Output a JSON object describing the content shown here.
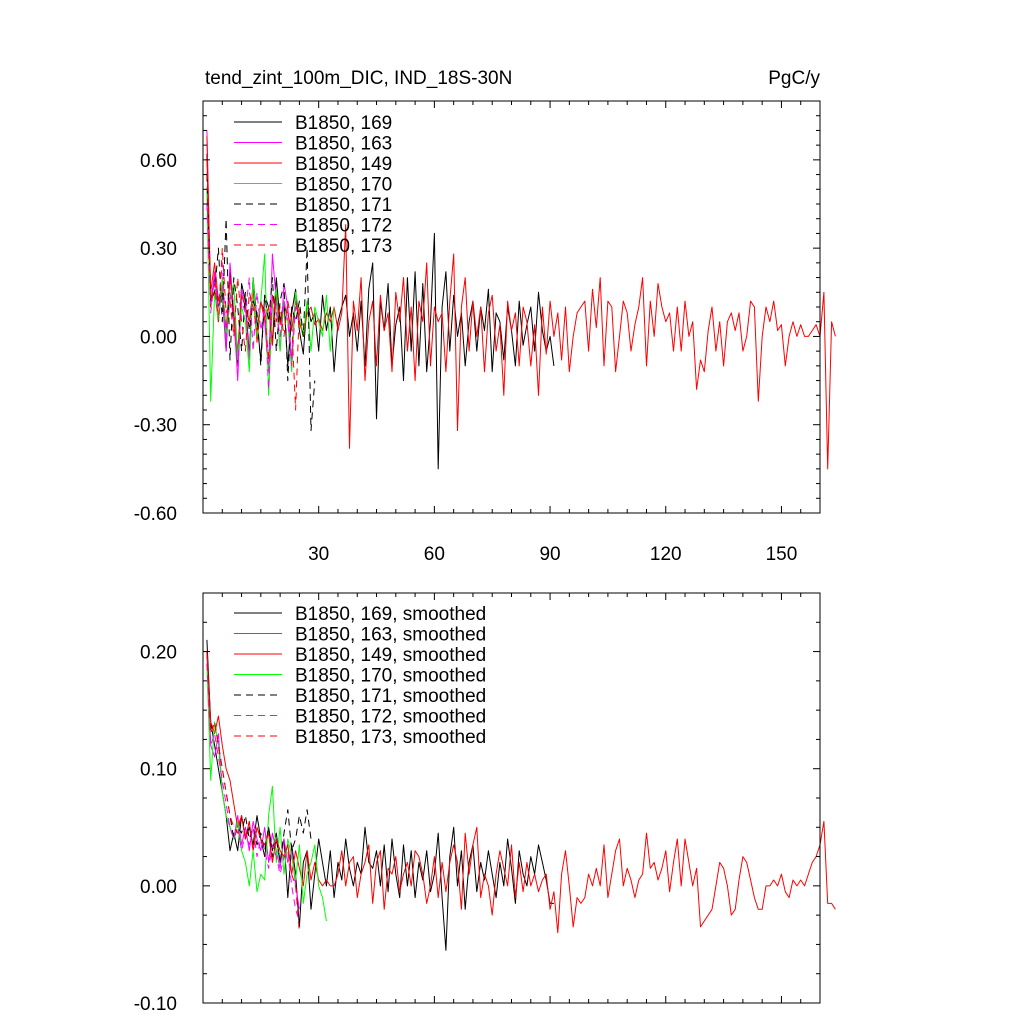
{
  "chart_data": [
    {
      "type": "line",
      "title_left": "tend_zint_100m_DIC, IND_18S-30N",
      "title_right": "PgC/y",
      "xlim": [
        0,
        160
      ],
      "ylim": [
        -0.6,
        0.8
      ],
      "x_ticks": [
        30,
        60,
        90,
        120,
        150
      ],
      "x_tick_labels": [
        "30",
        "60",
        "90",
        "120",
        "150"
      ],
      "y_ticks": [
        -0.6,
        -0.3,
        0.0,
        0.3,
        0.6
      ],
      "y_tick_labels": [
        "-0.60",
        "-0.30",
        "0.00",
        "0.30",
        "0.60"
      ],
      "legend_position": "top-left",
      "series": [
        {
          "name": "B1850, 169",
          "color": "#000000",
          "dash": "solid",
          "values": [
            0.62,
            0.12,
            0.2,
            0.1,
            0.15,
            -0.05,
            0.22,
            0.05,
            -0.1,
            0.18,
            0.12,
            -0.06,
            0.2,
            0.05,
            -0.08,
            0.14,
            0.1,
            -0.02,
            0.2,
            0.05,
            0.12,
            -0.1,
            0.08,
            0.16,
            0.02,
            -0.06,
            0.12,
            0.05,
            0.08,
            -0.05,
            0.14,
            0.02,
            0.1,
            -0.12,
            0.05,
            0.1,
            0.14,
            0.0,
            0.08,
            -0.05,
            0.12,
            -0.1,
            0.16,
            0.25,
            -0.28,
            0.12,
            0.02,
            0.18,
            -0.1,
            0.04,
            0.1,
            -0.15,
            0.2,
            -0.05,
            0.22,
            -0.1,
            0.18,
            -0.12,
            0.05,
            0.35,
            -0.45,
            0.1,
            0.22,
            -0.05,
            0.14,
            0.0,
            0.08,
            -0.1,
            0.05,
            0.12,
            -0.05,
            0.1,
            0.02,
            0.16,
            -0.12,
            0.08,
            0.05,
            -0.08,
            0.1,
            0.02,
            -0.1,
            0.12,
            -0.03,
            0.04,
            0.1,
            -0.05,
            0.15,
            0.02,
            -0.05,
            0.0,
            -0.1
          ]
        },
        {
          "name": "B1850, 163",
          "color": "#ff00ff",
          "dash": "solid",
          "values": [
            0.7,
            0.1,
            0.22,
            0.05,
            0.18,
            -0.05,
            0.25,
            0.08,
            -0.15,
            0.16,
            0.1,
            -0.08,
            0.2,
            0.0,
            0.12,
            0.05,
            -0.12,
            0.28,
            0.12,
            -0.05,
            0.18,
            0.1,
            -0.08,
            0.15,
            0.05
          ]
        },
        {
          "name": "B1850, 149",
          "color": "#ff0000",
          "dash": "solid",
          "values": [
            0.68,
            0.15,
            0.25,
            0.12,
            0.18,
            0.02,
            0.2,
            0.08,
            -0.05,
            0.14,
            0.1,
            0.05,
            0.16,
            -0.02,
            0.12,
            0.06,
            0.1,
            -0.03,
            0.14,
            0.04,
            0.1,
            0.08,
            0.02,
            0.12,
            0.05,
            0.0,
            0.08,
            0.1,
            0.04,
            0.06,
            0.02,
            0.08,
            0.05,
            0.1,
            0.02,
            0.08,
            0.38,
            -0.38,
            0.12,
            0.02,
            0.2,
            -0.15,
            0.05,
            0.12,
            -0.1,
            0.14,
            0.02,
            0.08,
            -0.12,
            0.15,
            0.05,
            0.2,
            -0.05,
            0.1,
            -0.15,
            0.12,
            0.05,
            0.25,
            -0.1,
            0.1,
            0.05,
            0.08,
            -0.12,
            0.12,
            0.28,
            -0.32,
            0.1,
            0.2,
            -0.05,
            0.12,
            0.0,
            0.1,
            -0.12,
            0.08,
            0.14,
            -0.05,
            0.04,
            -0.2,
            0.12,
            0.02,
            0.08,
            -0.1,
            0.1,
            0.05,
            -0.1,
            0.04,
            -0.2,
            0.1,
            -0.06,
            0.12,
            0.0,
            0.08,
            -0.08,
            0.1,
            -0.12,
            0.0,
            0.08,
            0.1,
            0.12,
            -0.05,
            0.16,
            0.03,
            0.2,
            -0.1,
            0.12,
            0.1,
            -0.12,
            0.0,
            0.12,
            0.08,
            -0.05,
            0.04,
            0.1,
            0.2,
            -0.1,
            0.12,
            0.0,
            0.18,
            0.1,
            0.05,
            0.08,
            -0.05,
            0.1,
            -0.05,
            0.12,
            0.0,
            0.05,
            -0.18,
            -0.08,
            -0.12,
            0.02,
            0.1,
            -0.05,
            0.05,
            -0.1,
            0.05,
            0.08,
            0.02,
            0.08,
            -0.05,
            0.0,
            0.12,
            0.1,
            -0.22,
            0.0,
            0.1,
            0.05,
            0.12,
            0.02,
            0.04,
            -0.1,
            0.0,
            0.05,
            0.0,
            0.04,
            0.0,
            0.0,
            0.02,
            0.04,
            0.0,
            0.15,
            -0.45,
            0.05,
            0.0
          ]
        },
        {
          "name": "B1850, 170",
          "color": "#00ff00",
          "dash": "solid",
          "values": [
            0.5,
            -0.22,
            0.15,
            0.05,
            0.2,
            0.0,
            0.12,
            0.18,
            -0.08,
            0.1,
            0.05,
            -0.12,
            0.2,
            0.0,
            0.12,
            0.28,
            -0.2,
            0.1,
            0.16,
            -0.05,
            0.12,
            0.05,
            -0.12,
            0.15,
            0.08,
            0.0,
            0.12,
            -0.05,
            0.1,
            0.05,
            0.0,
            0.14,
            -0.05,
            0.1
          ]
        },
        {
          "name": "B1850, 171",
          "color": "#000000",
          "dash": "dashed",
          "values": [
            0.55,
            0.12,
            0.15,
            0.3,
            0.05,
            0.4,
            -0.08,
            0.2,
            0.1,
            -0.05,
            0.15,
            0.02,
            0.12,
            0.08,
            -0.1,
            0.14,
            0.05,
            0.2,
            -0.05,
            0.12,
            0.18,
            -0.15,
            0.1,
            0.05,
            0.12,
            0.0,
            0.3,
            -0.32,
            -0.15
          ]
        },
        {
          "name": "B1850, 172",
          "color": "#ff00ff",
          "dash": "dashed",
          "values": [
            0.45,
            0.08,
            0.2,
            0.1,
            0.25,
            0.0,
            0.15,
            0.05,
            -0.1,
            0.12,
            0.08,
            0.2,
            -0.05,
            0.15,
            0.02,
            0.1,
            -0.18,
            0.14,
            0.08,
            0.0,
            0.12,
            0.05,
            -0.1,
            0.1,
            0.04
          ]
        },
        {
          "name": "B1850, 173",
          "color": "#ff0000",
          "dash": "dashed",
          "values": [
            0.6,
            0.1,
            0.18,
            0.05,
            0.3,
            0.08,
            0.12,
            0.0,
            0.2,
            0.05,
            -0.05,
            0.15,
            0.1,
            0.02,
            0.12,
            0.08,
            -0.08,
            0.14,
            0.05,
            0.1,
            0.0,
            0.12,
            0.05,
            -0.25,
            0.1
          ]
        }
      ]
    },
    {
      "type": "line",
      "xlim": [
        0,
        160
      ],
      "ylim": [
        -0.1,
        0.25
      ],
      "x_ticks": [
        30,
        60,
        90,
        120,
        150
      ],
      "y_ticks": [
        -0.1,
        0.0,
        0.1,
        0.2
      ],
      "y_tick_labels": [
        "-0.10",
        "0.00",
        "0.10",
        "0.20"
      ],
      "legend_position": "top-left",
      "series": [
        {
          "name": "B1850, 169, smoothed",
          "color": "#000000",
          "dash": "solid",
          "values": [
            0.21,
            0.14,
            0.12,
            0.1,
            0.08,
            0.06,
            0.03,
            0.045,
            0.03,
            0.06,
            0.04,
            0.05,
            0.035,
            0.06,
            0.04,
            0.025,
            0.05,
            0.03,
            0.045,
            0.02,
            0.04,
            -0.01,
            0.035,
            0.01,
            -0.035,
            0.02,
            0.03,
            -0.02,
            0.01,
            0.04,
            0.02,
            0.0,
            0.03,
            -0.01,
            0.02,
            0.005,
            0.04,
            0.015,
            0.0,
            0.02,
            0.01,
            0.05,
            0.02,
            0.015,
            0.03,
            0.0,
            0.035,
            -0.005,
            0.04,
            0.01,
            -0.01,
            0.035,
            0.0,
            0.03,
            -0.01,
            0.02,
            0.005,
            0.03,
            -0.005,
            0.01,
            0.045,
            -0.01,
            -0.055,
            0.025,
            0.05,
            0.0,
            0.03,
            -0.02,
            0.02,
            0.035,
            -0.005,
            0.02,
            0.005,
            0.03,
            0.01,
            -0.01,
            0.02,
            0.0,
            0.04,
            0.015,
            -0.015,
            0.03,
            0.01,
            0.0,
            0.025,
            0.01,
            0.035,
            0.02,
            0.005,
            -0.015,
            -0.015
          ]
        },
        {
          "name": "B1850, 163, smoothed",
          "color": "#ff00ff",
          "dash": "solid",
          "values": [
            0.2,
            0.12,
            0.11,
            0.13,
            0.08,
            0.06,
            0.05,
            0.04,
            0.06,
            0.035,
            0.05,
            0.03,
            0.055,
            0.04,
            0.03,
            0.05,
            0.02,
            0.045,
            0.03,
            0.015,
            0.04,
            0.02,
            0.03,
            0.0,
            -0.02
          ]
        },
        {
          "name": "B1850, 149, smoothed",
          "color": "#ff0000",
          "dash": "solid",
          "values": [
            0.2,
            0.14,
            0.13,
            0.145,
            0.12,
            0.1,
            0.09,
            0.07,
            0.05,
            0.06,
            0.04,
            0.055,
            0.03,
            0.05,
            0.04,
            0.035,
            0.045,
            0.02,
            0.04,
            0.03,
            0.025,
            0.035,
            0.01,
            0.03,
            0.015,
            0.0,
            0.03,
            0.005,
            0.02,
            0.005,
            0.0,
            0.005,
            0.0,
            0.0,
            0.01,
            0.03,
            0.0,
            0.02,
            0.025,
            -0.01,
            0.01,
            0.02,
            0.035,
            -0.015,
            0.02,
            0.03,
            -0.02,
            0.015,
            0.01,
            0.025,
            -0.005,
            0.01,
            0.02,
            0.0,
            0.03,
            0.025,
            0.01,
            -0.015,
            0.0,
            0.025,
            -0.01,
            0.02,
            -0.005,
            0.02,
            0.035,
            0.02,
            -0.02,
            0.045,
            0.01,
            0.035,
            0.05,
            -0.01,
            0.01,
            0.0,
            -0.025,
            0.01,
            0.03,
            0.015,
            0.0,
            0.035,
            -0.01,
            0.02,
            -0.005,
            0.02,
            0.0,
            0.01,
            -0.005,
            0.005,
            0.01,
            -0.02,
            -0.005,
            -0.04,
            0.01,
            0.03,
            0.0,
            -0.035,
            -0.01,
            -0.015,
            -0.01,
            0.01,
            0.0,
            0.015,
            0.0,
            0.035,
            -0.01,
            0.01,
            0.03,
            0.04,
            0.0,
            0.015,
            0.005,
            -0.01,
            0.005,
            0.01,
            0.045,
            0.015,
            0.02,
            0.005,
            0.015,
            0.03,
            -0.005,
            0.02,
            0.04,
            0.0,
            0.04,
            0.02,
            0.0,
            0.015,
            -0.035,
            -0.03,
            -0.025,
            -0.02,
            0.0,
            0.02,
            0.015,
            0.0,
            -0.025,
            -0.02,
            0.005,
            0.025,
            0.02,
            0.005,
            -0.01,
            -0.02,
            -0.02,
            0.0,
            0.0,
            0.005,
            0.0,
            0.01,
            -0.005,
            -0.01,
            0.005,
            0.0,
            0.005,
            0.0,
            0.01,
            0.02,
            0.025,
            0.035,
            0.055,
            -0.015,
            -0.015,
            -0.02
          ]
        },
        {
          "name": "B1850, 170, smoothed",
          "color": "#00ff00",
          "dash": "solid",
          "values": [
            0.19,
            0.09,
            0.14,
            0.12,
            0.08,
            0.06,
            0.05,
            0.04,
            0.055,
            0.03,
            0.02,
            0.0,
            0.03,
            -0.005,
            0.01,
            0.005,
            0.06,
            0.085,
            0.02,
            0.05,
            0.01,
            0.04,
            0.025,
            0.005,
            0.035,
            -0.015,
            0.01,
            0.02,
            0.035,
            0.0,
            -0.01,
            -0.03
          ]
        },
        {
          "name": "B1850, 171, smoothed",
          "color": "#000000",
          "dash": "dashed",
          "values": [
            0.2,
            0.13,
            0.14,
            0.12,
            0.1,
            0.08,
            0.06,
            0.04,
            0.05,
            0.045,
            0.06,
            0.04,
            0.05,
            0.035,
            0.045,
            0.03,
            0.05,
            0.025,
            0.04,
            0.02,
            0.045,
            0.065,
            0.03,
            0.04,
            0.06,
            0.045,
            0.065,
            0.04
          ]
        },
        {
          "name": "B1850, 172, smoothed",
          "color": "#ff00ff",
          "dash": "dashed",
          "values": [
            0.19,
            0.12,
            0.13,
            0.11,
            0.09,
            0.07,
            0.05,
            0.04,
            0.05,
            0.03,
            0.045,
            0.035,
            0.05,
            0.025,
            0.04,
            0.03,
            0.015,
            0.035,
            0.025,
            0.01,
            0.025,
            0.03,
            0.0,
            -0.02,
            -0.03
          ]
        },
        {
          "name": "B1850, 173, smoothed",
          "color": "#ff0000",
          "dash": "dashed",
          "values": [
            0.2,
            0.13,
            0.14,
            0.12,
            0.1,
            0.08,
            0.06,
            0.05,
            0.045,
            0.06,
            0.04,
            0.055,
            0.03,
            0.05,
            0.04,
            0.035,
            0.045,
            0.02,
            0.04,
            0.03,
            0.025,
            0.035,
            0.01,
            0.0,
            -0.04
          ]
        }
      ]
    }
  ]
}
